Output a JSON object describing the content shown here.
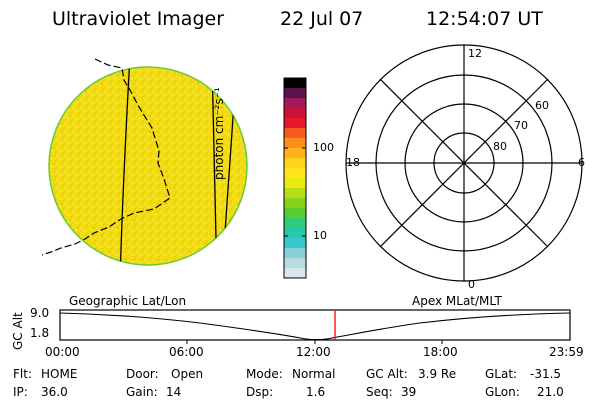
{
  "header": {
    "title": "Ultraviolet Imager",
    "date": "22 Jul 07",
    "time": "12:54:07 UT"
  },
  "image_panel": {
    "colors": {
      "disk_base": "#f3db12",
      "disk_speck_a": "#ffef4a",
      "disk_speck_b": "#e8c41a",
      "disk_speck_c": "#d7bf00",
      "disk_edge": "#66cc33"
    }
  },
  "colorbar": {
    "unit_label": "photon cm⁻²s⁻¹",
    "tick_labels": [
      "100",
      "10"
    ],
    "colors": [
      "#d7e6ea",
      "#b7dbe0",
      "#87d0d8",
      "#37c8cd",
      "#28c8aa",
      "#2dcb7a",
      "#59cc33",
      "#88d21e",
      "#b6dd17",
      "#e8ea10",
      "#ffe61c",
      "#ffd21c",
      "#ffb11c",
      "#ff8d1c",
      "#f65a1e",
      "#e6172b",
      "#c9113a",
      "#9f1b5c",
      "#5c124f",
      "#000000"
    ]
  },
  "polar_plot": {
    "top_label": "12",
    "left_label": "18",
    "right_label": "6",
    "bottom_label": "0",
    "ring_labels": [
      "60",
      "70",
      "80"
    ]
  },
  "timeline": {
    "left_title": "Geographic Lat/Lon",
    "right_title": "Apex MLat/MLT",
    "y_axis_label": "GC Alt",
    "y_ticks": [
      "9.0",
      "1.8"
    ],
    "x_ticks": [
      "00:00",
      "06:00",
      "12:00",
      "18:00",
      "23:59"
    ],
    "current_time_color": "#ff0000"
  },
  "footer": {
    "row1": {
      "flt_label": "Flt:",
      "flt_value": "HOME",
      "door_label": "Door:",
      "door_value": "Open",
      "mode_label": "Mode:",
      "mode_value": "Normal",
      "gc_alt_label": "GC Alt:",
      "gc_alt_value": "3.9 Re",
      "glat_label": "GLat:",
      "glat_value": "-31.5"
    },
    "row2": {
      "ip_label": "IP:",
      "ip_value": "36.0",
      "gain_label": "Gain:",
      "gain_value": "14",
      "dsp_label": "Dsp:",
      "dsp_value": "1.6",
      "seq_label": "Seq:",
      "seq_value": "39",
      "glon_label": "GLon:",
      "glon_value": "21.0"
    }
  }
}
